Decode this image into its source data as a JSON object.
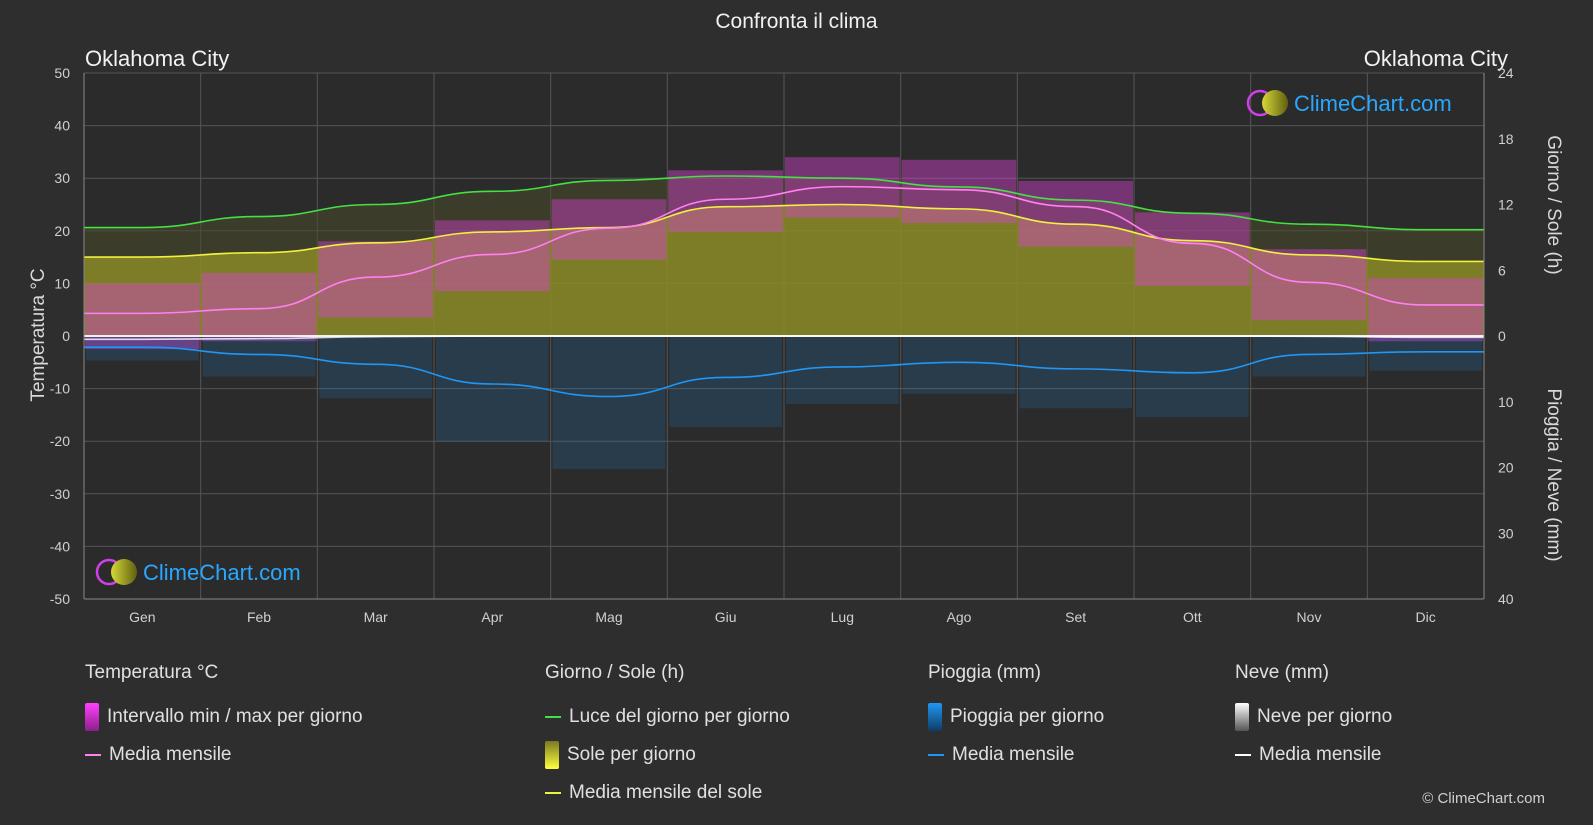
{
  "title": "Confronta il clima",
  "location_left": "Oklahoma City",
  "location_right": "Oklahoma City",
  "watermark": "ClimeChart.com",
  "credit": "© ClimeChart.com",
  "colors": {
    "background": "#2e2e2e",
    "temp_band": "#e040d8",
    "temp_mean": "#ff80f0",
    "daylight": "#44e044",
    "sun_fill": "#a0a028",
    "sun_mean": "#f0f040",
    "rain": "#1e88e5",
    "rain_mean": "#2196f3",
    "snow": "#9e9e9e",
    "snow_mean": "#ffffff",
    "logo_text": "#29a8ff"
  },
  "legend": {
    "temp": {
      "heading": "Temperatura °C",
      "range": "Intervallo min / max per giorno",
      "mean": "Media mensile"
    },
    "sun": {
      "heading": "Giorno / Sole (h)",
      "daylight": "Luce del giorno per giorno",
      "sunshine": "Sole per giorno",
      "mean": "Media mensile del sole"
    },
    "rain": {
      "heading": "Pioggia (mm)",
      "daily": "Pioggia per giorno",
      "mean": "Media mensile"
    },
    "snow": {
      "heading": "Neve (mm)",
      "daily": "Neve per giorno",
      "mean": "Media mensile"
    }
  },
  "chart_data": {
    "type": "area",
    "categories": [
      "Gen",
      "Feb",
      "Mar",
      "Apr",
      "Mag",
      "Giu",
      "Lug",
      "Ago",
      "Set",
      "Ott",
      "Nov",
      "Dic"
    ],
    "axes": {
      "left": {
        "label": "Temperatura °C",
        "min": -50,
        "max": 50,
        "ticks": [
          50,
          40,
          30,
          20,
          10,
          0,
          -10,
          -20,
          -30,
          -40,
          -50
        ]
      },
      "right_top": {
        "label": "Giorno / Sole (h)",
        "min": 0,
        "max": 24,
        "ticks": [
          24,
          18,
          12,
          6,
          0
        ]
      },
      "right_bottom": {
        "label": "Pioggia / Neve (mm)",
        "min": 0,
        "max": 40,
        "ticks": [
          10,
          20,
          30,
          40
        ]
      }
    },
    "grid": true,
    "series": [
      {
        "name": "Media mensile",
        "kind": "temperature_mean",
        "unit": "°C",
        "values": [
          4.3,
          5.2,
          11.2,
          15.5,
          20.5,
          26.0,
          28.4,
          27.8,
          24.6,
          17.6,
          10.2,
          5.9
        ]
      },
      {
        "name": "Intervallo min / max per giorno",
        "kind": "temperature_range",
        "unit": "°C",
        "min": [
          -2.5,
          -1.0,
          3.5,
          8.5,
          14.5,
          19.8,
          22.5,
          21.5,
          17.0,
          9.5,
          3.0,
          -1.0
        ],
        "max": [
          10.0,
          12.0,
          18.0,
          22.0,
          26.0,
          31.5,
          34.0,
          33.5,
          29.5,
          23.5,
          16.5,
          11.0
        ]
      },
      {
        "name": "Luce del giorno per giorno",
        "kind": "daylight",
        "unit": "h",
        "values": [
          9.9,
          10.9,
          12.0,
          13.2,
          14.2,
          14.6,
          14.4,
          13.6,
          12.4,
          11.2,
          10.2,
          9.7
        ]
      },
      {
        "name": "Media mensile del sole",
        "kind": "sunshine_mean",
        "unit": "h",
        "values": [
          7.2,
          7.6,
          8.5,
          9.5,
          9.9,
          11.8,
          12.0,
          11.6,
          10.2,
          8.7,
          7.4,
          6.8
        ]
      },
      {
        "name": "Media mensile",
        "kind": "rain_mean",
        "unit": "mm",
        "values": [
          1.7,
          2.8,
          4.3,
          7.3,
          9.2,
          6.3,
          4.7,
          4.0,
          5.0,
          5.6,
          2.8,
          2.4
        ]
      },
      {
        "name": "Media mensile",
        "kind": "snow_mean",
        "unit": "mm",
        "values": [
          0.5,
          0.4,
          0.1,
          0.0,
          0.0,
          0.0,
          0.0,
          0.0,
          0.0,
          0.0,
          0.05,
          0.2
        ]
      }
    ]
  }
}
